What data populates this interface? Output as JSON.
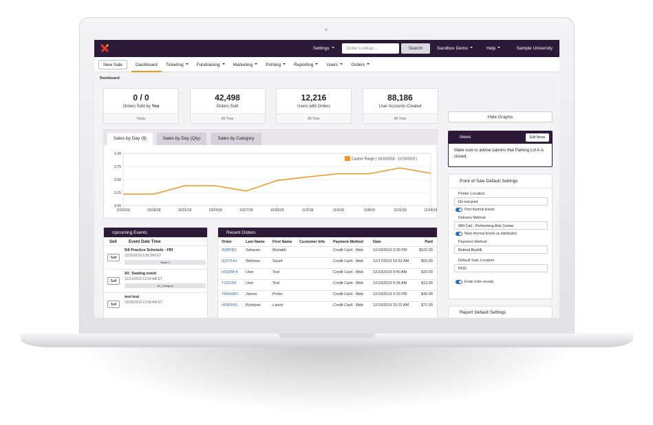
{
  "nav": {
    "settings": "Settings",
    "search_placeholder": "Order Lookup...",
    "search_button": "Search",
    "account": "Sandbox Demo",
    "help": "Help",
    "org": "Sample University"
  },
  "tabs": {
    "new_sale": "New Sale",
    "items": [
      "Dashboard",
      "Ticketing",
      "Fundraising",
      "Marketing",
      "Printing",
      "Reporting",
      "Users",
      "Orders"
    ]
  },
  "breadcrumb": "Dashboard",
  "stats": [
    {
      "value": "0 / 0",
      "label": "Orders Sold by",
      "label_bold": "You",
      "period": "Today"
    },
    {
      "value": "42,498",
      "label": "Orders Sold",
      "period": "All Time"
    },
    {
      "value": "12,216",
      "label": "Users with Orders",
      "period": "All Time"
    },
    {
      "value": "88,186",
      "label": "User Accounts Created",
      "period": "All Time"
    }
  ],
  "hide_graphs": "Hide Graphs",
  "chart_tabs": [
    "Sales by Day ($)",
    "Sales by Day (Qty)",
    "Sales by Category"
  ],
  "chart_data": {
    "type": "line",
    "legend": "Custom Range ( 10/15/2018 - 11/15/2018 )",
    "color": "#f7941d",
    "categories": [
      "10/15/18",
      "10/18/18",
      "10/21/18",
      "10/24/18",
      "10/27/18",
      "10/30/18",
      "11/2/18",
      "11/5/18",
      "11/8/18",
      "11/11/18",
      "11/14/18"
    ],
    "values": [
      0.22,
      0.22,
      0.38,
      0.38,
      0.28,
      0.48,
      0.55,
      0.61,
      0.61,
      0.72,
      0.62
    ],
    "ylim": [
      0,
      1
    ],
    "yticks": [
      {
        "value": 0,
        "label": "0.00"
      },
      {
        "value": 0.25,
        "label": "0.25"
      },
      {
        "value": 0.5,
        "label": "0.50"
      },
      {
        "value": 0.75,
        "label": "0.75"
      },
      {
        "value": 1,
        "label": "1.00"
      }
    ],
    "grid": true
  },
  "events": {
    "title": "Upcoming Events",
    "columns": [
      "Sell",
      "Event Date Time"
    ],
    "rows": [
      {
        "button": "Sell",
        "name": "5/6 Practice Schedule - FRI",
        "date": "12/20/2019 5:00 PM ET",
        "tag": "Sarah 2"
      },
      {
        "button": "Sell",
        "name": "AV_Seating event",
        "date": "12/21/2019 12:00 AM ET",
        "tag": "AV_Category"
      },
      {
        "button": "Sell",
        "name": "test test",
        "date": "12/29/2019 12:00 AM ET"
      }
    ]
  },
  "orders": {
    "title": "Recent Orders",
    "columns": [
      "Order",
      "Last Name",
      "First Name",
      "Customer Info",
      "Payment Method",
      "Date",
      "Paid"
    ],
    "rows": [
      {
        "order": "9QBPBC",
        "last": "Saharan",
        "first": "Rishabh",
        "payment": "Credit Card - Web",
        "date": "12/18/2019 3:39 PM",
        "paid": "$102.00"
      },
      {
        "order": "QJXTHH",
        "last": "Wellman",
        "first": "Sarah",
        "payment": "Credit Card - Web",
        "date": "12/17/2019 10:52 AM",
        "paid": "$52.00"
      },
      {
        "order": "HSQWFK",
        "last": "User",
        "first": "Test",
        "payment": "Credit Card - Web",
        "date": "12/13/2019 9:40 AM",
        "paid": "$23.00"
      },
      {
        "order": "TXDSSK",
        "last": "User",
        "first": "Test",
        "payment": "Credit Card - Web",
        "date": "12/13/2019 9:34 AM",
        "paid": "$13.00"
      },
      {
        "order": "YWHHNV",
        "last": "James",
        "first": "Porter",
        "payment": "Credit Card - Web",
        "date": "12/10/2019 3:19 PM",
        "paid": "$42.00"
      },
      {
        "order": "XRBDNG",
        "last": "Ryshpan",
        "first": "Laurel",
        "payment": "Credit Card - Web",
        "date": "12/10/2019 10:22 AM",
        "paid": "$71.00"
      }
    ]
  },
  "news": {
    "title": "News",
    "button": "Edit News",
    "text": "Make sure to advise patrons that Parking Lot A is closed."
  },
  "pos": {
    "title": "Point of Sale Default Settings",
    "sections": [
      {
        "label": "Printer Location",
        "select": "Do not print",
        "toggle": "Print thermal tickets"
      },
      {
        "label": "Delivery Method",
        "select": "Will Call - Performing Arts Center",
        "toggle": "Mark thermal tickets as distributed"
      },
      {
        "label": "Payment Method",
        "select": "Bobcat Buck$"
      },
      {
        "label": "Default Sale Location",
        "select": "POS"
      }
    ],
    "receipt": "Email order receipt"
  },
  "report": "Report Default Settings"
}
